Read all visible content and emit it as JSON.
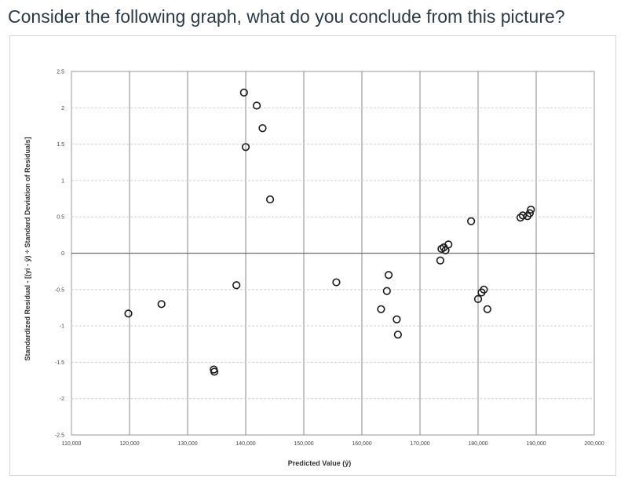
{
  "question": "Consider the following graph, what do you conclude from this picture?",
  "chart_data": {
    "type": "scatter",
    "xlabel": "Predicted Value (ŷ)",
    "ylabel": "Standardized Residual - [(yi - ŷ) ÷ Standard Deviation of Residuals]",
    "xlim": [
      110000,
      200000
    ],
    "ylim": [
      -2.5,
      2.5
    ],
    "x_ticks": [
      110000,
      120000,
      130000,
      140000,
      150000,
      160000,
      170000,
      180000,
      190000,
      200000
    ],
    "x_tick_labels": [
      "110,000",
      "120,000",
      "130,000",
      "140,000",
      "150,000",
      "160,000",
      "170,000",
      "180,000",
      "190,000",
      "200,000"
    ],
    "y_ticks": [
      -2.5,
      -2,
      -1.5,
      -1,
      -0.5,
      0,
      0.5,
      1,
      1.5,
      2,
      2.5
    ],
    "y_tick_labels": [
      "-2.5",
      "-2",
      "-1.5",
      "-1",
      "-0.5",
      "0",
      "0.5",
      "1",
      "1.5",
      "2",
      "2.5"
    ],
    "grid": true,
    "marker": "open-circle",
    "x": [
      119800,
      125500,
      134500,
      134600,
      138400,
      139700,
      140000,
      141900,
      142900,
      144200,
      155600,
      163300,
      164300,
      164600,
      166000,
      166200,
      173500,
      173700,
      174100,
      174400,
      174900,
      178800,
      180000,
      180600,
      181000,
      181600,
      187300,
      187700,
      188500,
      188900,
      189100
    ],
    "y": [
      -0.83,
      -0.7,
      -1.6,
      -1.63,
      -0.44,
      2.21,
      1.46,
      2.03,
      1.72,
      0.74,
      -0.4,
      -0.77,
      -0.52,
      -0.3,
      -0.91,
      -1.12,
      -0.1,
      0.06,
      0.08,
      0.04,
      0.12,
      0.44,
      -0.63,
      -0.54,
      -0.5,
      -0.77,
      0.49,
      0.52,
      0.51,
      0.55,
      0.6
    ]
  }
}
